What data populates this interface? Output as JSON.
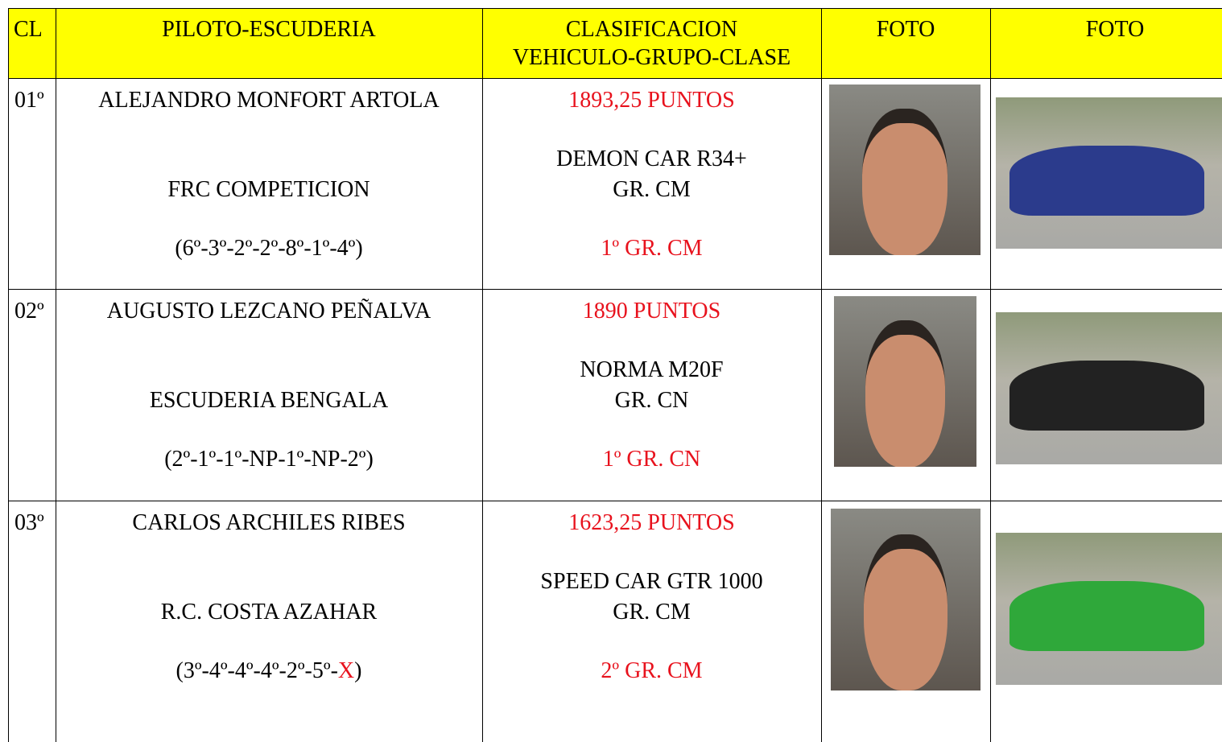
{
  "header": [
    "CL",
    "PILOTO-ESCUDERIA",
    [
      "CLASIFICACION",
      "VEHICULO-GRUPO-CLASE"
    ],
    "FOTO",
    "FOTO"
  ],
  "rows": [
    {
      "position": "01º",
      "driver": "ALEJANDRO MONFORT ARTOLA",
      "team": "FRC COMPETICION",
      "results": [
        {
          "text": "(6º-3º-2º-2º-8º-1º-4º)"
        }
      ],
      "points": "1893,25 PUNTOS",
      "vehicle": "DEMON CAR R34+",
      "group": "GR. CM",
      "class_result": "1º GR. CM"
    },
    {
      "position": "02º",
      "driver": "AUGUSTO LEZCANO PEÑALVA",
      "team": "ESCUDERIA BENGALA",
      "results": [
        {
          "text": "(2º-1º-1º-NP-1º-NP-2º)"
        }
      ],
      "points": "1890 PUNTOS",
      "vehicle": "NORMA M20F",
      "group": "GR. CN",
      "class_result": "1º GR. CN"
    },
    {
      "position": "03º",
      "driver": "CARLOS ARCHILES RIBES",
      "team": "R.C. COSTA AZAHAR",
      "results": [
        {
          "text": "(3º-4º-4º-4º-2º-5º-"
        },
        {
          "text": "X",
          "red": true
        },
        {
          "text": ")"
        }
      ],
      "points": "1623,25 PUNTOS",
      "vehicle": "SPEED CAR GTR 1000",
      "group": "GR. CM",
      "class_result": "2º GR. CM"
    }
  ]
}
